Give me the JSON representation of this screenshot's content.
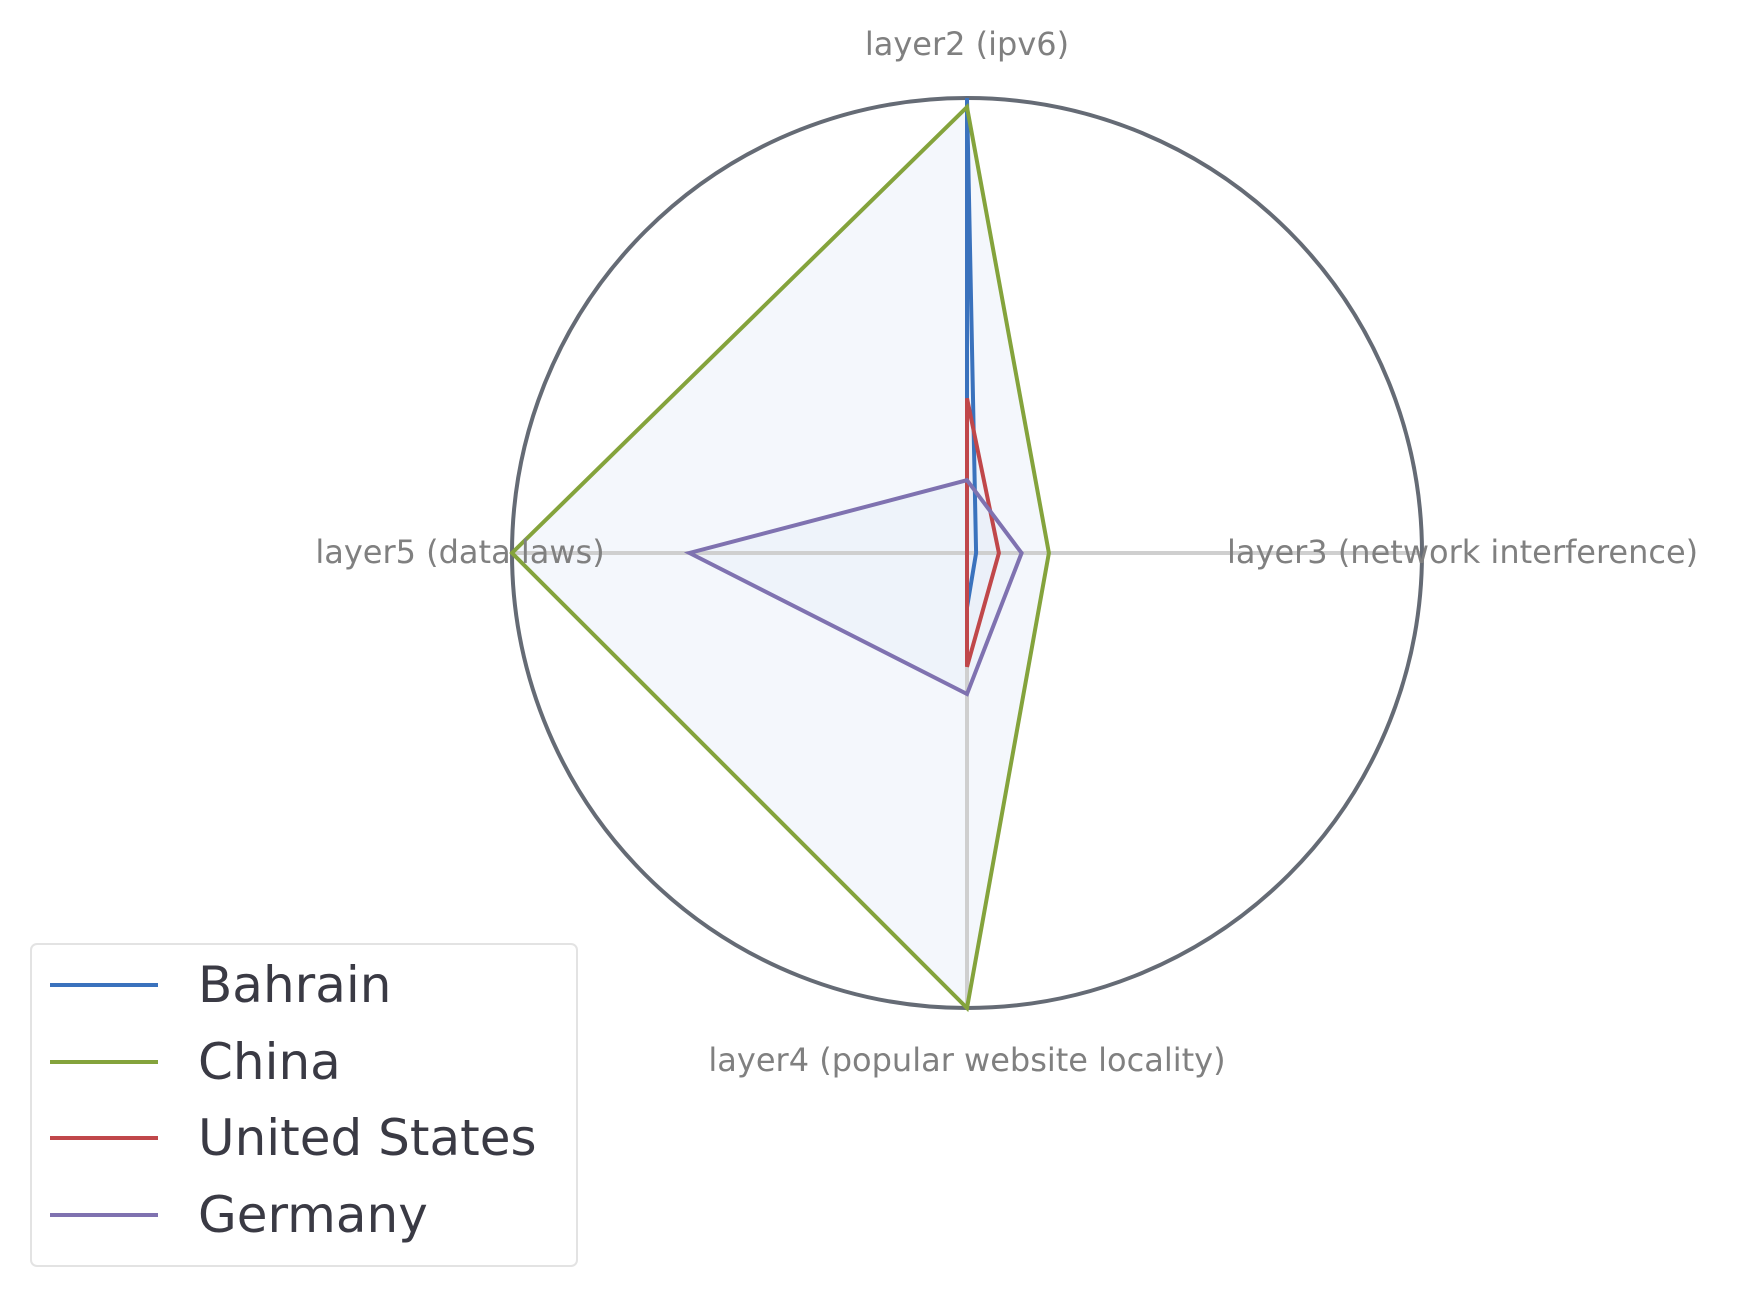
{
  "chart_data": {
    "type": "radar",
    "title": "",
    "axes": [
      "layer2 (ipv6)",
      "layer3 (network interference)",
      "layer4 (popular website locality)",
      "layer5 (data laws)"
    ],
    "rlim": [
      0,
      1
    ],
    "grid": false,
    "legend_position": "bottom-left",
    "series": [
      {
        "name": "Bahrain",
        "values": [
          1.0,
          0.02,
          0.12,
          0.0
        ],
        "color": "#3a72bd"
      },
      {
        "name": "China",
        "values": [
          0.98,
          0.18,
          1.0,
          1.0
        ],
        "color": "#84a33c"
      },
      {
        "name": "United States",
        "values": [
          0.34,
          0.07,
          0.25,
          0.0
        ],
        "color": "#c0474a"
      },
      {
        "name": "Germany",
        "values": [
          0.16,
          0.12,
          0.31,
          0.61
        ],
        "color": "#7f72b0"
      }
    ],
    "colors": {
      "outer_circle": "#656b75",
      "spokes": "#cfcfcf",
      "fill": "#e7eef8",
      "axis_label": "#808080",
      "legend_text": "#3a3a44",
      "legend_border": "#e3e3e3"
    }
  }
}
